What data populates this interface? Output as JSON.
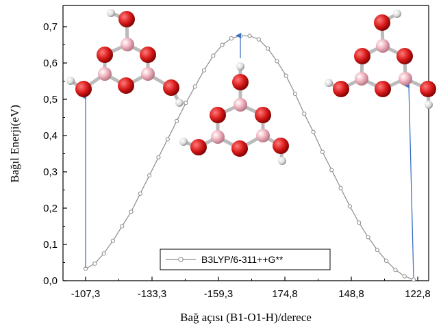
{
  "chart_data": {
    "type": "line",
    "title": "",
    "xlabel": "Bağ açısı (B1-O1-H)/derece",
    "ylabel": "Bağıl Enerji(eV)",
    "x_tick_labels": [
      "-107,3",
      "-133,3",
      "-159,3",
      "174,8",
      "148,8",
      "122,8"
    ],
    "y_tick_labels": [
      "0,0",
      "0,1",
      "0,2",
      "0,3",
      "0,4",
      "0,5",
      "0,6",
      "0,7"
    ],
    "ylim": [
      0,
      0.75
    ],
    "grid": false,
    "legend_position": "bottom-center",
    "series": [
      {
        "name": "B3LYP/6-311++G**",
        "color": "#8c8c8c",
        "marker": "open-circle",
        "values": [
          0.033,
          0.047,
          0.075,
          0.11,
          0.15,
          0.19,
          0.24,
          0.29,
          0.34,
          0.39,
          0.44,
          0.49,
          0.535,
          0.58,
          0.62,
          0.65,
          0.668,
          0.675,
          0.675,
          0.665,
          0.64,
          0.605,
          0.565,
          0.515,
          0.46,
          0.41,
          0.355,
          0.305,
          0.255,
          0.205,
          0.16,
          0.12,
          0.085,
          0.055,
          0.03,
          0.012,
          0.003
        ]
      }
    ]
  },
  "molecules": [
    {
      "name": "left-molecule",
      "color_boron": "#f2b8c2",
      "color_oxygen": "#cc1111",
      "color_hydrogen": "#eeeeee"
    },
    {
      "name": "center-molecule",
      "color_boron": "#f2b8c2",
      "color_oxygen": "#cc1111",
      "color_hydrogen": "#eeeeee"
    },
    {
      "name": "right-molecule",
      "color_boron": "#f2b8c2",
      "color_oxygen": "#cc1111",
      "color_hydrogen": "#eeeeee"
    }
  ],
  "arrow_color": "#3b72c4"
}
